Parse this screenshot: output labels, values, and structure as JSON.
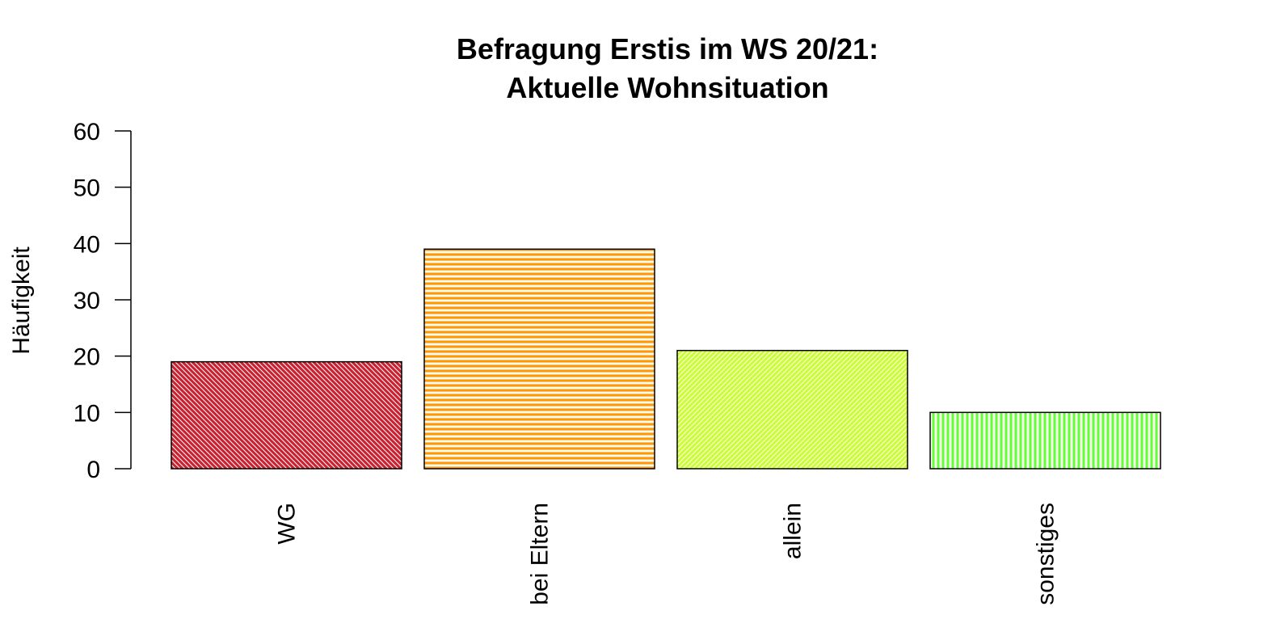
{
  "chart_data": {
    "type": "bar",
    "title": "Befragung Erstis im WS 20/21:",
    "subtitle": "Aktuelle Wohnsituation",
    "xlabel": "",
    "ylabel": "Häufigkeit",
    "categories": [
      "WG",
      "bei Eltern",
      "allein",
      "sonstiges"
    ],
    "values": [
      19,
      39,
      21,
      10
    ],
    "ylim": [
      0,
      60
    ],
    "yticks": [
      0,
      10,
      20,
      30,
      40,
      50,
      60
    ],
    "grid": false,
    "legend": "none",
    "bar_colors": [
      "#cc1f2f",
      "#ff9900",
      "#ccff33",
      "#66ff33"
    ],
    "hatch_styles": [
      "diagonal-down",
      "horizontal",
      "diagonal-up",
      "vertical"
    ]
  }
}
